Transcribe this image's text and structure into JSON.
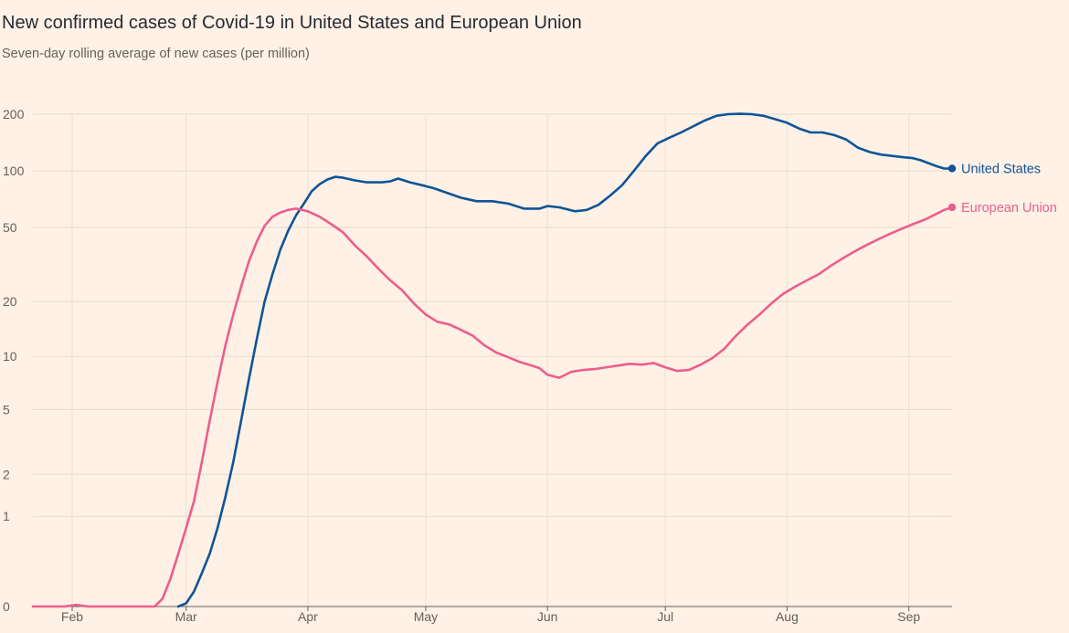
{
  "chart_data": {
    "type": "line",
    "title": "New confirmed cases of Covid-19 in United States and European Union",
    "subtitle": "Seven-day rolling average of new cases (per million)",
    "y_scale": "log (shifted, 0 shown at base)",
    "y_ticks": [
      0,
      1,
      2,
      5,
      10,
      20,
      50,
      100,
      200
    ],
    "x_ticks": [
      "Feb",
      "Mar",
      "Apr",
      "May",
      "Jun",
      "Jul",
      "Aug",
      "Sep"
    ],
    "x_range": [
      "2020-01-22",
      "2020-09-12"
    ],
    "grid": true,
    "colors": {
      "United States": "#0f5499",
      "European Union": "#eb5e8d"
    },
    "series": [
      {
        "name": "United States",
        "color": "#0f5499",
        "points": [
          [
            "2020-02-28",
            0
          ],
          [
            "2020-03-01",
            0.02
          ],
          [
            "2020-03-03",
            0.1
          ],
          [
            "2020-03-05",
            0.25
          ],
          [
            "2020-03-07",
            0.45
          ],
          [
            "2020-03-09",
            0.8
          ],
          [
            "2020-03-11",
            1.4
          ],
          [
            "2020-03-13",
            2.4
          ],
          [
            "2020-03-15",
            4.3
          ],
          [
            "2020-03-17",
            7.5
          ],
          [
            "2020-03-19",
            12.5
          ],
          [
            "2020-03-21",
            20
          ],
          [
            "2020-03-23",
            28
          ],
          [
            "2020-03-25",
            38
          ],
          [
            "2020-03-27",
            48
          ],
          [
            "2020-03-29",
            58
          ],
          [
            "2020-03-31",
            67
          ],
          [
            "2020-04-02",
            78
          ],
          [
            "2020-04-04",
            85
          ],
          [
            "2020-04-06",
            90
          ],
          [
            "2020-04-08",
            93
          ],
          [
            "2020-04-10",
            92
          ],
          [
            "2020-04-13",
            89
          ],
          [
            "2020-04-16",
            87
          ],
          [
            "2020-04-20",
            87
          ],
          [
            "2020-04-22",
            88
          ],
          [
            "2020-04-24",
            91
          ],
          [
            "2020-04-27",
            87
          ],
          [
            "2020-04-30",
            84
          ],
          [
            "2020-05-03",
            81
          ],
          [
            "2020-05-06",
            77
          ],
          [
            "2020-05-10",
            72
          ],
          [
            "2020-05-14",
            69
          ],
          [
            "2020-05-18",
            69
          ],
          [
            "2020-05-22",
            67
          ],
          [
            "2020-05-26",
            63
          ],
          [
            "2020-05-30",
            63
          ],
          [
            "2020-06-01",
            65
          ],
          [
            "2020-06-04",
            64
          ],
          [
            "2020-06-08",
            61
          ],
          [
            "2020-06-11",
            62
          ],
          [
            "2020-06-14",
            66
          ],
          [
            "2020-06-17",
            74
          ],
          [
            "2020-06-20",
            84
          ],
          [
            "2020-06-23",
            100
          ],
          [
            "2020-06-26",
            120
          ],
          [
            "2020-06-29",
            140
          ],
          [
            "2020-07-02",
            150
          ],
          [
            "2020-07-05",
            160
          ],
          [
            "2020-07-08",
            172
          ],
          [
            "2020-07-11",
            185
          ],
          [
            "2020-07-14",
            196
          ],
          [
            "2020-07-17",
            200
          ],
          [
            "2020-07-20",
            201
          ],
          [
            "2020-07-23",
            200
          ],
          [
            "2020-07-26",
            196
          ],
          [
            "2020-07-29",
            188
          ],
          [
            "2020-08-01",
            180
          ],
          [
            "2020-08-04",
            168
          ],
          [
            "2020-08-07",
            160
          ],
          [
            "2020-08-10",
            160
          ],
          [
            "2020-08-13",
            155
          ],
          [
            "2020-08-16",
            147
          ],
          [
            "2020-08-19",
            133
          ],
          [
            "2020-08-22",
            126
          ],
          [
            "2020-08-25",
            122
          ],
          [
            "2020-08-28",
            120
          ],
          [
            "2020-08-31",
            118
          ],
          [
            "2020-09-02",
            117
          ],
          [
            "2020-09-04",
            114
          ],
          [
            "2020-09-06",
            110
          ],
          [
            "2020-09-08",
            106
          ],
          [
            "2020-09-10",
            103
          ],
          [
            "2020-09-12",
            103
          ]
        ]
      },
      {
        "name": "European Union",
        "color": "#eb5e8d",
        "points": [
          [
            "2020-01-22",
            0
          ],
          [
            "2020-01-30",
            0
          ],
          [
            "2020-02-02",
            0.01
          ],
          [
            "2020-02-05",
            0
          ],
          [
            "2020-02-22",
            0
          ],
          [
            "2020-02-24",
            0.05
          ],
          [
            "2020-02-26",
            0.2
          ],
          [
            "2020-02-28",
            0.45
          ],
          [
            "2020-03-01",
            0.8
          ],
          [
            "2020-03-03",
            1.3
          ],
          [
            "2020-03-05",
            2.4
          ],
          [
            "2020-03-07",
            4.3
          ],
          [
            "2020-03-09",
            7.2
          ],
          [
            "2020-03-11",
            11.5
          ],
          [
            "2020-03-13",
            17
          ],
          [
            "2020-03-15",
            24
          ],
          [
            "2020-03-17",
            33
          ],
          [
            "2020-03-19",
            42
          ],
          [
            "2020-03-21",
            51
          ],
          [
            "2020-03-23",
            57
          ],
          [
            "2020-03-25",
            60
          ],
          [
            "2020-03-27",
            62
          ],
          [
            "2020-03-29",
            63
          ],
          [
            "2020-04-01",
            61
          ],
          [
            "2020-04-04",
            57
          ],
          [
            "2020-04-07",
            52
          ],
          [
            "2020-04-10",
            47
          ],
          [
            "2020-04-13",
            40
          ],
          [
            "2020-04-16",
            35
          ],
          [
            "2020-04-19",
            30
          ],
          [
            "2020-04-22",
            26
          ],
          [
            "2020-04-25",
            23
          ],
          [
            "2020-04-28",
            19.5
          ],
          [
            "2020-05-01",
            17
          ],
          [
            "2020-05-04",
            15.5
          ],
          [
            "2020-05-07",
            15
          ],
          [
            "2020-05-10",
            14
          ],
          [
            "2020-05-13",
            13
          ],
          [
            "2020-05-16",
            11.5
          ],
          [
            "2020-05-19",
            10.5
          ],
          [
            "2020-05-22",
            9.9
          ],
          [
            "2020-05-25",
            9.3
          ],
          [
            "2020-05-28",
            8.9
          ],
          [
            "2020-05-30",
            8.6
          ],
          [
            "2020-06-01",
            7.9
          ],
          [
            "2020-06-04",
            7.6
          ],
          [
            "2020-06-07",
            8.2
          ],
          [
            "2020-06-10",
            8.4
          ],
          [
            "2020-06-13",
            8.5
          ],
          [
            "2020-06-16",
            8.7
          ],
          [
            "2020-06-19",
            8.9
          ],
          [
            "2020-06-22",
            9.1
          ],
          [
            "2020-06-25",
            9.0
          ],
          [
            "2020-06-28",
            9.2
          ],
          [
            "2020-07-01",
            8.7
          ],
          [
            "2020-07-04",
            8.3
          ],
          [
            "2020-07-07",
            8.4
          ],
          [
            "2020-07-10",
            9.0
          ],
          [
            "2020-07-13",
            9.8
          ],
          [
            "2020-07-16",
            11
          ],
          [
            "2020-07-19",
            13
          ],
          [
            "2020-07-22",
            15
          ],
          [
            "2020-07-25",
            17
          ],
          [
            "2020-07-28",
            19.5
          ],
          [
            "2020-07-31",
            22
          ],
          [
            "2020-08-03",
            24
          ],
          [
            "2020-08-06",
            26
          ],
          [
            "2020-08-09",
            28
          ],
          [
            "2020-08-12",
            31
          ],
          [
            "2020-08-15",
            34
          ],
          [
            "2020-08-18",
            37
          ],
          [
            "2020-08-21",
            40
          ],
          [
            "2020-08-24",
            43
          ],
          [
            "2020-08-27",
            46
          ],
          [
            "2020-08-30",
            49
          ],
          [
            "2020-09-02",
            52
          ],
          [
            "2020-09-05",
            55
          ],
          [
            "2020-09-08",
            59
          ],
          [
            "2020-09-10",
            62
          ],
          [
            "2020-09-12",
            64
          ]
        ]
      }
    ]
  }
}
